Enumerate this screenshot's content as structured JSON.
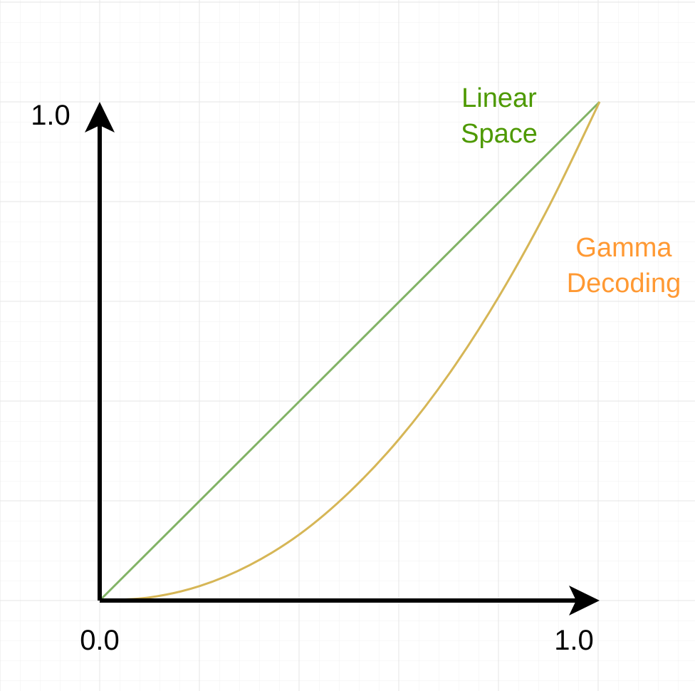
{
  "chart_data": {
    "type": "line",
    "title": "",
    "xlabel": "",
    "ylabel": "",
    "xlim": [
      0.0,
      1.0
    ],
    "ylim": [
      0.0,
      1.0
    ],
    "grid": true,
    "tick_labels": {
      "x_min": "0.0",
      "x_max": "1.0",
      "y_max": "1.0"
    },
    "series": [
      {
        "name": "Linear Space",
        "label_lines": [
          "Linear",
          "Space"
        ],
        "color": "#82b366",
        "label_color": "#4d9900",
        "x": [
          0.0,
          1.0
        ],
        "y": [
          0.0,
          1.0
        ]
      },
      {
        "name": "Gamma Decoding",
        "label_lines": [
          "Gamma",
          "Decoding"
        ],
        "color": "#d6b656",
        "label_color": "#ff9933",
        "x": [
          0.0,
          0.1,
          0.2,
          0.3,
          0.4,
          0.5,
          0.6,
          0.7,
          0.8,
          0.9,
          1.0
        ],
        "y": [
          0.0,
          0.0063,
          0.029,
          0.071,
          0.133,
          0.218,
          0.325,
          0.456,
          0.612,
          0.793,
          1.0
        ]
      }
    ],
    "axis_color": "#000000",
    "grid_color": "#e5e5e5"
  }
}
